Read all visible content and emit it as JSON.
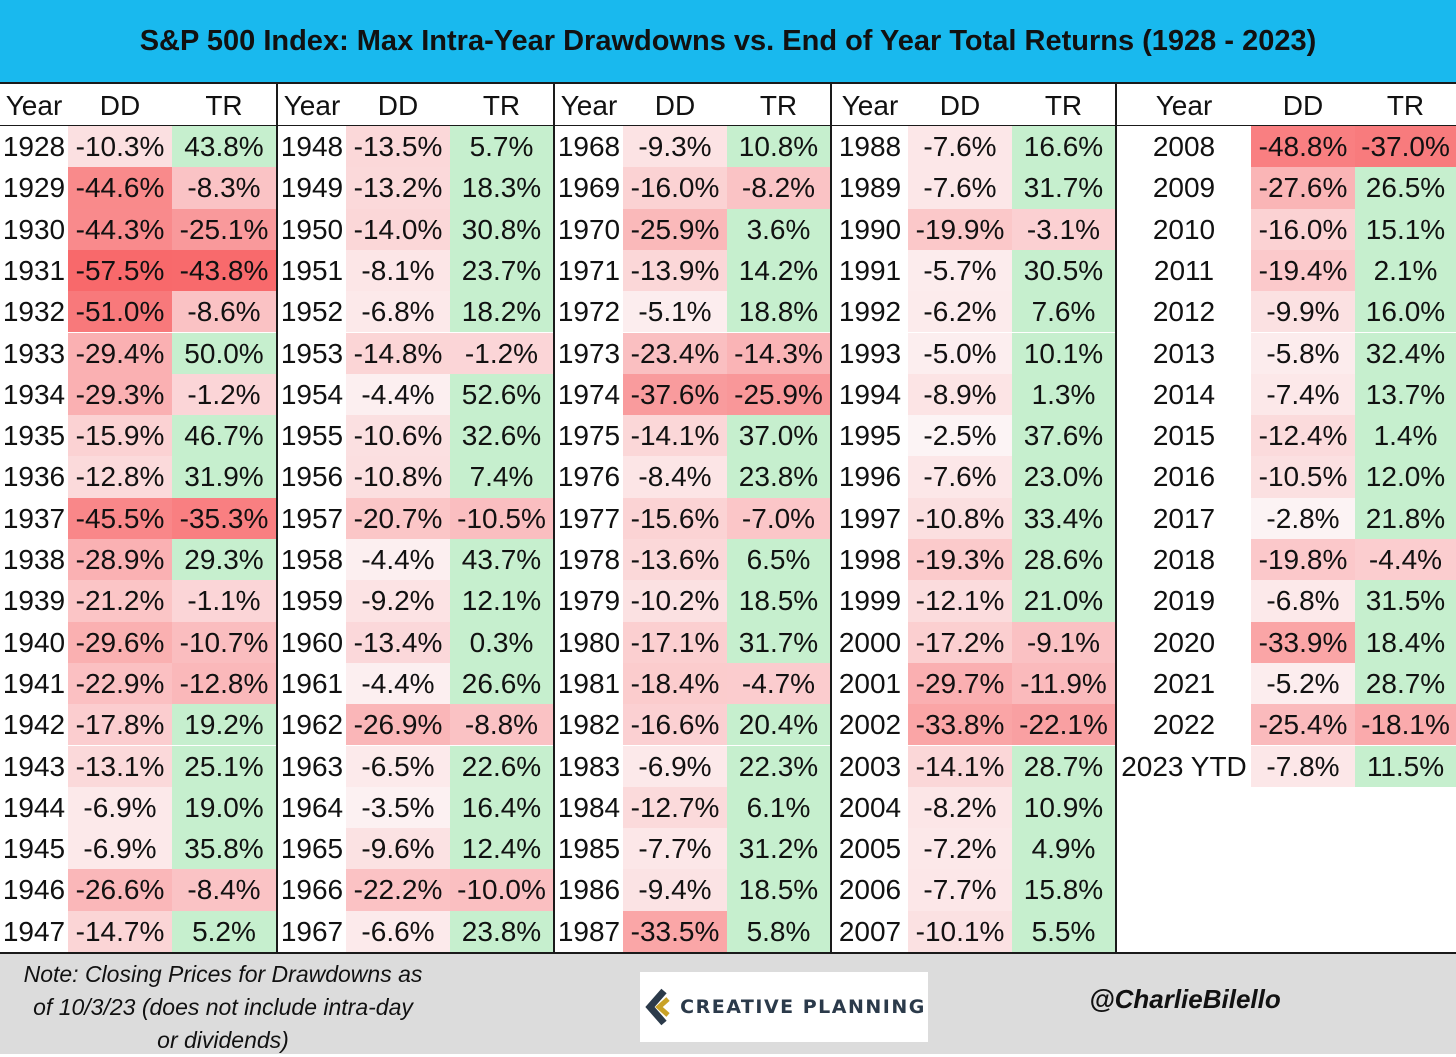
{
  "title": "S&P 500 Index: Max Intra-Year Drawdowns vs. End of Year Total Returns (1928 - 2023)",
  "headers": {
    "year": "Year",
    "dd": "DD",
    "tr": "TR"
  },
  "footer": {
    "note_lines": [
      "Note: Closing Prices for Drawdowns as",
      "of 10/3/23 (does not include intra-day",
      "or dividends)"
    ],
    "logo_text": "CREATIVE PLANNING",
    "handle": "@CharlieBilello"
  },
  "colors": {
    "title_bg": "#19b9ee",
    "footer_bg": "#dcdcdc",
    "negative": "#f8696b",
    "positive": "#c6efce"
  },
  "chart_data": {
    "type": "table",
    "title": "S&P 500 Index: Max Intra-Year Drawdowns vs. End of Year Total Returns (1928 - 2023)",
    "columns": [
      "Year",
      "DD",
      "TR"
    ],
    "rows": [
      [
        "1928",
        "-10.3%",
        "43.8%"
      ],
      [
        "1929",
        "-44.6%",
        "-8.3%"
      ],
      [
        "1930",
        "-44.3%",
        "-25.1%"
      ],
      [
        "1931",
        "-57.5%",
        "-43.8%"
      ],
      [
        "1932",
        "-51.0%",
        "-8.6%"
      ],
      [
        "1933",
        "-29.4%",
        "50.0%"
      ],
      [
        "1934",
        "-29.3%",
        "-1.2%"
      ],
      [
        "1935",
        "-15.9%",
        "46.7%"
      ],
      [
        "1936",
        "-12.8%",
        "31.9%"
      ],
      [
        "1937",
        "-45.5%",
        "-35.3%"
      ],
      [
        "1938",
        "-28.9%",
        "29.3%"
      ],
      [
        "1939",
        "-21.2%",
        "-1.1%"
      ],
      [
        "1940",
        "-29.6%",
        "-10.7%"
      ],
      [
        "1941",
        "-22.9%",
        "-12.8%"
      ],
      [
        "1942",
        "-17.8%",
        "19.2%"
      ],
      [
        "1943",
        "-13.1%",
        "25.1%"
      ],
      [
        "1944",
        "-6.9%",
        "19.0%"
      ],
      [
        "1945",
        "-6.9%",
        "35.8%"
      ],
      [
        "1946",
        "-26.6%",
        "-8.4%"
      ],
      [
        "1947",
        "-14.7%",
        "5.2%"
      ],
      [
        "1948",
        "-13.5%",
        "5.7%"
      ],
      [
        "1949",
        "-13.2%",
        "18.3%"
      ],
      [
        "1950",
        "-14.0%",
        "30.8%"
      ],
      [
        "1951",
        "-8.1%",
        "23.7%"
      ],
      [
        "1952",
        "-6.8%",
        "18.2%"
      ],
      [
        "1953",
        "-14.8%",
        "-1.2%"
      ],
      [
        "1954",
        "-4.4%",
        "52.6%"
      ],
      [
        "1955",
        "-10.6%",
        "32.6%"
      ],
      [
        "1956",
        "-10.8%",
        "7.4%"
      ],
      [
        "1957",
        "-20.7%",
        "-10.5%"
      ],
      [
        "1958",
        "-4.4%",
        "43.7%"
      ],
      [
        "1959",
        "-9.2%",
        "12.1%"
      ],
      [
        "1960",
        "-13.4%",
        "0.3%"
      ],
      [
        "1961",
        "-4.4%",
        "26.6%"
      ],
      [
        "1962",
        "-26.9%",
        "-8.8%"
      ],
      [
        "1963",
        "-6.5%",
        "22.6%"
      ],
      [
        "1964",
        "-3.5%",
        "16.4%"
      ],
      [
        "1965",
        "-9.6%",
        "12.4%"
      ],
      [
        "1966",
        "-22.2%",
        "-10.0%"
      ],
      [
        "1967",
        "-6.6%",
        "23.8%"
      ],
      [
        "1968",
        "-9.3%",
        "10.8%"
      ],
      [
        "1969",
        "-16.0%",
        "-8.2%"
      ],
      [
        "1970",
        "-25.9%",
        "3.6%"
      ],
      [
        "1971",
        "-13.9%",
        "14.2%"
      ],
      [
        "1972",
        "-5.1%",
        "18.8%"
      ],
      [
        "1973",
        "-23.4%",
        "-14.3%"
      ],
      [
        "1974",
        "-37.6%",
        "-25.9%"
      ],
      [
        "1975",
        "-14.1%",
        "37.0%"
      ],
      [
        "1976",
        "-8.4%",
        "23.8%"
      ],
      [
        "1977",
        "-15.6%",
        "-7.0%"
      ],
      [
        "1978",
        "-13.6%",
        "6.5%"
      ],
      [
        "1979",
        "-10.2%",
        "18.5%"
      ],
      [
        "1980",
        "-17.1%",
        "31.7%"
      ],
      [
        "1981",
        "-18.4%",
        "-4.7%"
      ],
      [
        "1982",
        "-16.6%",
        "20.4%"
      ],
      [
        "1983",
        "-6.9%",
        "22.3%"
      ],
      [
        "1984",
        "-12.7%",
        "6.1%"
      ],
      [
        "1985",
        "-7.7%",
        "31.2%"
      ],
      [
        "1986",
        "-9.4%",
        "18.5%"
      ],
      [
        "1987",
        "-33.5%",
        "5.8%"
      ],
      [
        "1988",
        "-7.6%",
        "16.6%"
      ],
      [
        "1989",
        "-7.6%",
        "31.7%"
      ],
      [
        "1990",
        "-19.9%",
        "-3.1%"
      ],
      [
        "1991",
        "-5.7%",
        "30.5%"
      ],
      [
        "1992",
        "-6.2%",
        "7.6%"
      ],
      [
        "1993",
        "-5.0%",
        "10.1%"
      ],
      [
        "1994",
        "-8.9%",
        "1.3%"
      ],
      [
        "1995",
        "-2.5%",
        "37.6%"
      ],
      [
        "1996",
        "-7.6%",
        "23.0%"
      ],
      [
        "1997",
        "-10.8%",
        "33.4%"
      ],
      [
        "1998",
        "-19.3%",
        "28.6%"
      ],
      [
        "1999",
        "-12.1%",
        "21.0%"
      ],
      [
        "2000",
        "-17.2%",
        "-9.1%"
      ],
      [
        "2001",
        "-29.7%",
        "-11.9%"
      ],
      [
        "2002",
        "-33.8%",
        "-22.1%"
      ],
      [
        "2003",
        "-14.1%",
        "28.7%"
      ],
      [
        "2004",
        "-8.2%",
        "10.9%"
      ],
      [
        "2005",
        "-7.2%",
        "4.9%"
      ],
      [
        "2006",
        "-7.7%",
        "15.8%"
      ],
      [
        "2007",
        "-10.1%",
        "5.5%"
      ],
      [
        "2008",
        "-48.8%",
        "-37.0%"
      ],
      [
        "2009",
        "-27.6%",
        "26.5%"
      ],
      [
        "2010",
        "-16.0%",
        "15.1%"
      ],
      [
        "2011",
        "-19.4%",
        "2.1%"
      ],
      [
        "2012",
        "-9.9%",
        "16.0%"
      ],
      [
        "2013",
        "-5.8%",
        "32.4%"
      ],
      [
        "2014",
        "-7.4%",
        "13.7%"
      ],
      [
        "2015",
        "-12.4%",
        "1.4%"
      ],
      [
        "2016",
        "-10.5%",
        "12.0%"
      ],
      [
        "2017",
        "-2.8%",
        "21.8%"
      ],
      [
        "2018",
        "-19.8%",
        "-4.4%"
      ],
      [
        "2019",
        "-6.8%",
        "31.5%"
      ],
      [
        "2020",
        "-33.9%",
        "18.4%"
      ],
      [
        "2021",
        "-5.2%",
        "28.7%"
      ],
      [
        "2022",
        "-25.4%",
        "-18.1%"
      ],
      [
        "2023 YTD",
        "-7.8%",
        "11.5%"
      ]
    ]
  }
}
